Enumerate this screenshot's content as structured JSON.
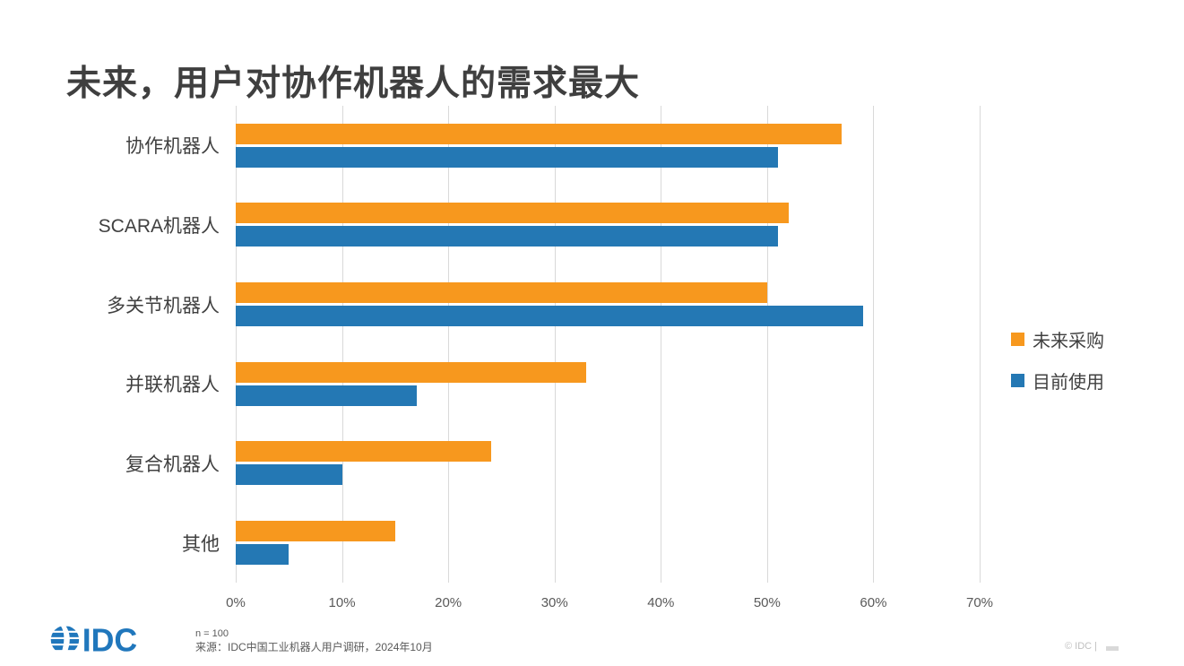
{
  "slide": {
    "title": "未来，用户对协作机器人的需求最大"
  },
  "chart_data": {
    "type": "bar",
    "orientation": "horizontal-grouped",
    "title": "未来，用户对协作机器人的需求最大",
    "categories": [
      "协作机器人",
      "SCARA机器人",
      "多关节机器人",
      "并联机器人",
      "复合机器人",
      "其他"
    ],
    "series": [
      {
        "name": "未来采购",
        "color": "#F7981E",
        "values": [
          57,
          52,
          50,
          33,
          24,
          15
        ]
      },
      {
        "name": "目前使用",
        "color": "#2478B4",
        "values": [
          51,
          51,
          59,
          17,
          10,
          5
        ]
      }
    ],
    "value_unit": "%",
    "x_ticks": [
      "0%",
      "10%",
      "20%",
      "30%",
      "40%",
      "50%",
      "60%",
      "70%"
    ],
    "xlim": [
      0,
      70
    ],
    "grid": "vertical light gray lines at every 10%",
    "legend_position": "right"
  },
  "footer": {
    "logo_text": "IDC",
    "logo_color": "#2077BC",
    "sample_note": "n = 100",
    "source": "来源：IDC中国工业机器人用户调研，2024年10月",
    "copyright": "© IDC |"
  }
}
